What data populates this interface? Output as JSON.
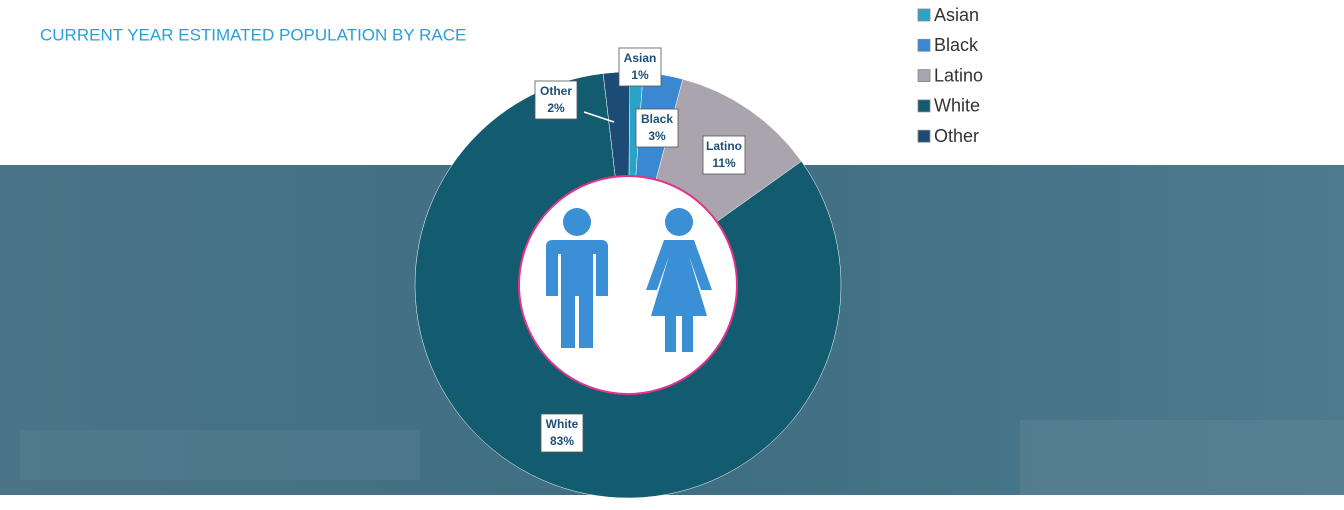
{
  "chart_data": {
    "type": "pie",
    "title": "CURRENT YEAR ESTIMATED POPULATION BY RACE",
    "categories": [
      "Asian",
      "Black",
      "Latino",
      "White",
      "Other"
    ],
    "values": [
      1,
      3,
      11,
      83,
      2
    ],
    "value_labels": [
      "1%",
      "3%",
      "11%",
      "83%",
      "2%"
    ],
    "colors": [
      "#2aa3c9",
      "#3a87d2",
      "#a9a4ad",
      "#135b6f",
      "#1c4c76"
    ],
    "legend": "top-right"
  }
}
